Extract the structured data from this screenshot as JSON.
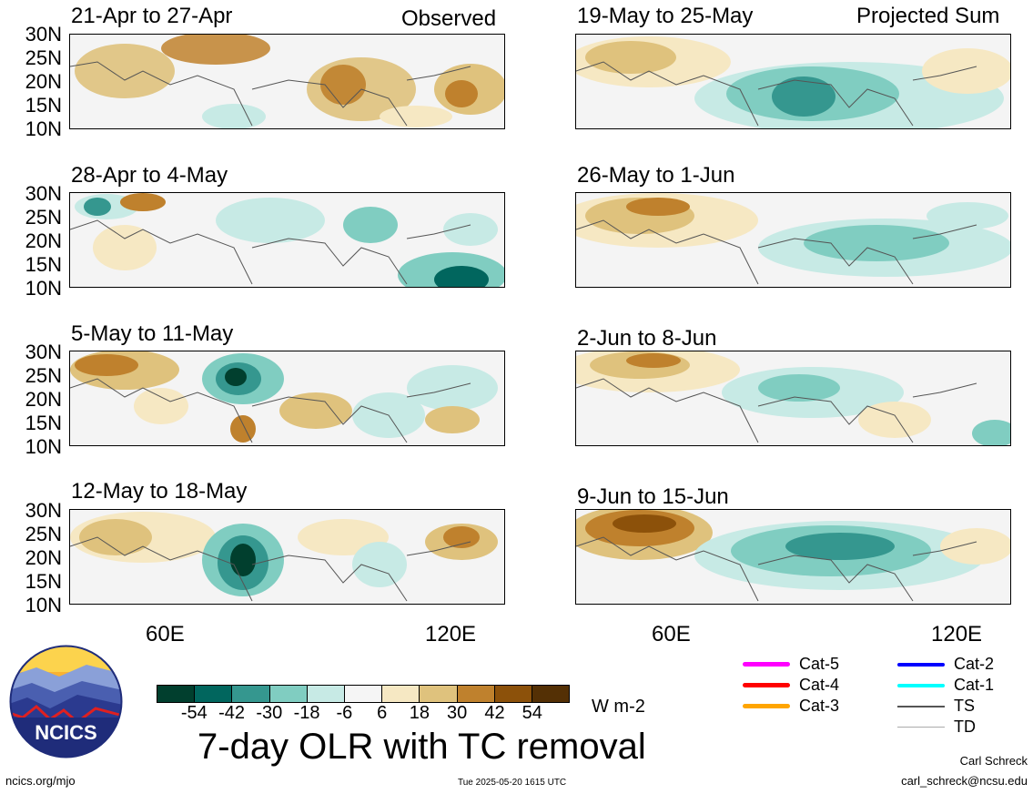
{
  "panels": [
    {
      "id": "p1",
      "title": "21-Apr to 27-Apr",
      "tag": "Observed"
    },
    {
      "id": "p2",
      "title": "19-May to 25-May",
      "tag": "Projected Sum"
    },
    {
      "id": "p3",
      "title": "28-Apr to 4-May",
      "tag": ""
    },
    {
      "id": "p4",
      "title": "26-May to 1-Jun",
      "tag": ""
    },
    {
      "id": "p5",
      "title": "5-May to 11-May",
      "tag": ""
    },
    {
      "id": "p6",
      "title": "2-Jun to 8-Jun",
      "tag": ""
    },
    {
      "id": "p7",
      "title": "12-May to 18-May",
      "tag": ""
    },
    {
      "id": "p8",
      "title": "9-Jun to 15-Jun",
      "tag": ""
    }
  ],
  "lat_labels": [
    "30N",
    "25N",
    "20N",
    "15N",
    "10N"
  ],
  "lon_labels": [
    "60E",
    "120E"
  ],
  "colorbar": {
    "colors": [
      "#013f2e",
      "#01665e",
      "#35978f",
      "#80cdc1",
      "#c7eae5",
      "#f5f5f5",
      "#f6e8c3",
      "#dfc27d",
      "#bf812d",
      "#8c510a",
      "#543005"
    ],
    "ticks": [
      "-54",
      "-42",
      "-30",
      "-18",
      "-6",
      "6",
      "18",
      "30",
      "42",
      "54"
    ],
    "units": "W m-2"
  },
  "legend": [
    {
      "label": "Cat-5",
      "color": "#ff00ff"
    },
    {
      "label": "Cat-4",
      "color": "#ff0000"
    },
    {
      "label": "Cat-3",
      "color": "#ffa500"
    },
    {
      "label": "Cat-2",
      "color": "#0000ff"
    },
    {
      "label": "Cat-1",
      "color": "#00ffff"
    },
    {
      "label": "TS",
      "color": "#555555"
    },
    {
      "label": "TD",
      "color": "#aaaaaa"
    }
  ],
  "logo_text": "NCICS",
  "main_title": "7-day OLR with TC removal",
  "footer": {
    "left": "ncics.org/mjo",
    "center": "Tue 2025-05-20 1615 UTC",
    "author": "Carl Schreck",
    "email": "carl_schreck@ncsu.edu"
  }
}
